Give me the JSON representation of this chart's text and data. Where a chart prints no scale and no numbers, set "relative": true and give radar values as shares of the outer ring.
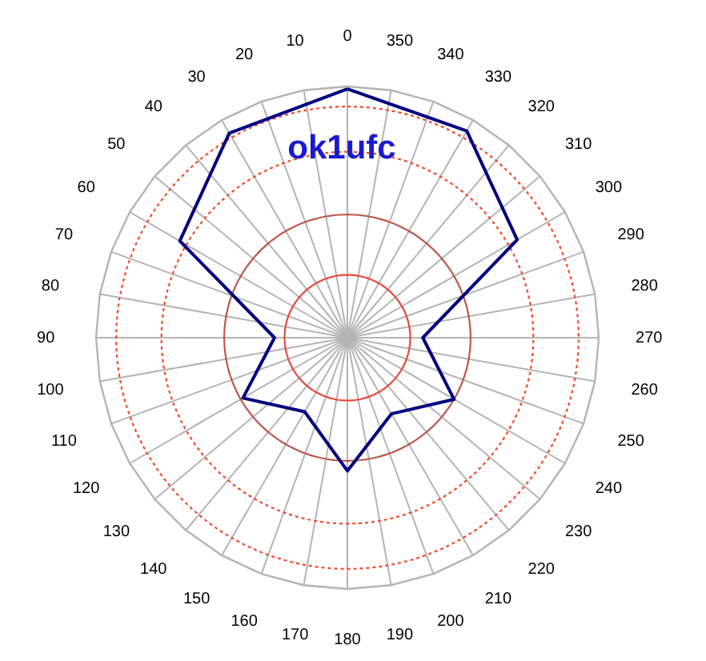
{
  "chart_data": {
    "type": "radar",
    "title": "ok1ufc",
    "relative": true,
    "grid": true,
    "categories": [
      "0",
      "350",
      "340",
      "330",
      "320",
      "310",
      "300",
      "290",
      "280",
      "270",
      "260",
      "250",
      "240",
      "230",
      "220",
      "210",
      "200",
      "190",
      "180",
      "170",
      "160",
      "150",
      "140",
      "130",
      "120",
      "110",
      "100",
      "90",
      "80",
      "70",
      "60",
      "50",
      "40",
      "30",
      "20",
      "10"
    ],
    "series": [
      {
        "color": "#000080",
        "values": [
          0.99,
          null,
          null,
          0.95,
          null,
          null,
          0.78,
          null,
          null,
          0.3,
          null,
          null,
          0.49,
          null,
          null,
          0.35,
          null,
          null,
          0.53,
          null,
          null,
          0.34,
          null,
          null,
          0.48,
          null,
          null,
          0.29,
          null,
          null,
          0.77,
          null,
          null,
          0.94,
          null,
          null
        ]
      }
    ]
  }
}
